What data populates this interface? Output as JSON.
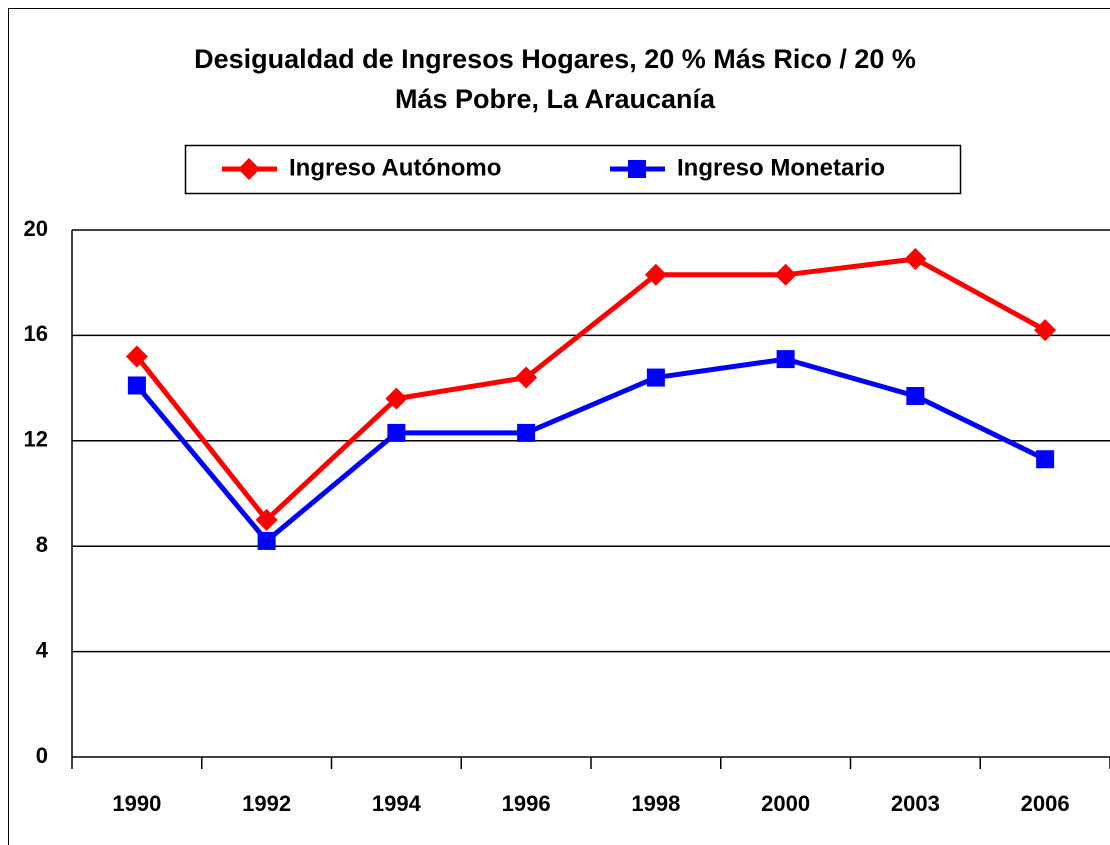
{
  "chart_data": {
    "type": "line",
    "title": [
      "Desigualdad de Ingresos Hogares, 20 % Más Rico / 20 %",
      "Más Pobre, La Araucanía"
    ],
    "categories": [
      "1990",
      "1992",
      "1994",
      "1996",
      "1998",
      "2000",
      "2003",
      "2006"
    ],
    "series": [
      {
        "name": "Ingreso Autónomo",
        "color": "#ff0000",
        "marker": "diamond",
        "values": [
          15.2,
          9.0,
          13.6,
          14.4,
          18.3,
          18.3,
          18.9,
          16.2
        ]
      },
      {
        "name": "Ingreso Monetario",
        "color": "#0000ff",
        "marker": "square",
        "values": [
          14.1,
          8.2,
          12.3,
          12.3,
          14.4,
          15.1,
          13.7,
          11.3
        ]
      }
    ],
    "ylim": [
      0,
      20
    ],
    "yticks": [
      0,
      4,
      8,
      12,
      16,
      20
    ],
    "grid": true,
    "legend": "top"
  }
}
